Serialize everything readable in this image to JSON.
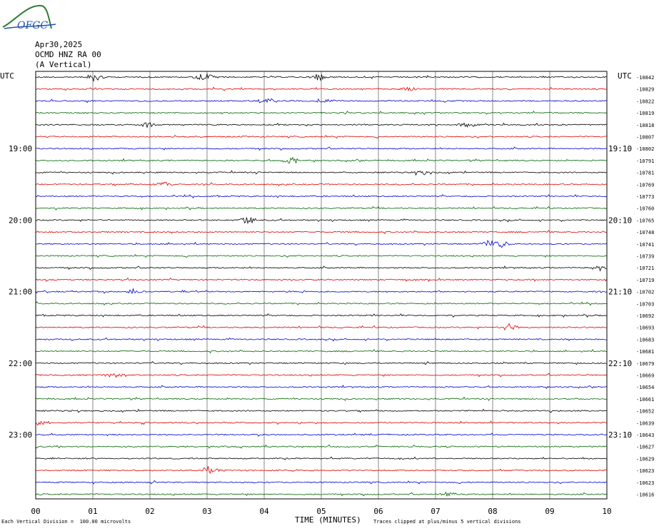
{
  "logo": {
    "text": "OFGC",
    "colors": {
      "text": "#2255aa",
      "swoosh": "#2e7d32"
    }
  },
  "header": {
    "date": "Apr30,2025",
    "station": "OCMD HNZ RA 00",
    "component": "(A Vertical)"
  },
  "chart_data": {
    "type": "line",
    "title": "",
    "xlabel": "TIME (MINUTES)",
    "xlim": [
      0,
      10
    ],
    "x_ticks": [
      "00",
      "01",
      "02",
      "03",
      "04",
      "05",
      "06",
      "07",
      "08",
      "09",
      "10"
    ],
    "left_axis_label": "UTC",
    "right_axis_label": "UTC",
    "left_time_labels": [
      {
        "row": 6,
        "label": "19:00"
      },
      {
        "row": 12,
        "label": "20:00"
      },
      {
        "row": 18,
        "label": "21:00"
      },
      {
        "row": 24,
        "label": "22:00"
      },
      {
        "row": 30,
        "label": "23:00"
      }
    ],
    "right_time_labels": [
      {
        "row": 6,
        "label": "19:10"
      },
      {
        "row": 12,
        "label": "20:10"
      },
      {
        "row": 18,
        "label": "21:10"
      },
      {
        "row": 24,
        "label": "22:10"
      },
      {
        "row": 30,
        "label": "23:10"
      }
    ],
    "trace_colors": [
      "#000000",
      "#dd0000",
      "#0000cc",
      "#006600"
    ],
    "trace_offsets": [
      "-10842",
      "-10829",
      "-10822",
      "-10819",
      "-10818",
      "-10807",
      "-10802",
      "-10791",
      "-10781",
      "-10769",
      "-10773",
      "-10760",
      "-10765",
      "-10748",
      "-10741",
      "-10739",
      "-10721",
      "-10719",
      "-10702",
      "-10703",
      "-10692",
      "-10693",
      "-10683",
      "-10681",
      "-10679",
      "-10669",
      "-10654",
      "-10661",
      "-10652",
      "-10639",
      "-10643",
      "-10627",
      "-10629",
      "-10623",
      "-10623",
      "-10616"
    ],
    "events": [
      {
        "row": 0,
        "minute": 1.05,
        "amp": 6
      },
      {
        "row": 0,
        "minute": 2.95,
        "amp": 6
      },
      {
        "row": 0,
        "minute": 4.95,
        "amp": 5
      },
      {
        "row": 1,
        "minute": 6.5,
        "amp": 4
      },
      {
        "row": 2,
        "minute": 4.05,
        "amp": 5
      },
      {
        "row": 2,
        "minute": 5.05,
        "amp": 5
      },
      {
        "row": 4,
        "minute": 1.95,
        "amp": 4
      },
      {
        "row": 4,
        "minute": 7.55,
        "amp": 4
      },
      {
        "row": 7,
        "minute": 4.45,
        "amp": 6
      },
      {
        "row": 8,
        "minute": 6.8,
        "amp": 4
      },
      {
        "row": 9,
        "minute": 2.25,
        "amp": 4
      },
      {
        "row": 12,
        "minute": 3.7,
        "amp": 6
      },
      {
        "row": 14,
        "minute": 7.95,
        "amp": 6
      },
      {
        "row": 14,
        "minute": 8.15,
        "amp": 5
      },
      {
        "row": 16,
        "minute": 9.9,
        "amp": 4
      },
      {
        "row": 18,
        "minute": 1.7,
        "amp": 4
      },
      {
        "row": 21,
        "minute": 8.3,
        "amp": 5
      },
      {
        "row": 25,
        "minute": 1.35,
        "amp": 4
      },
      {
        "row": 29,
        "minute": 0.1,
        "amp": 4
      },
      {
        "row": 33,
        "minute": 3.05,
        "amp": 6
      },
      {
        "row": 35,
        "minute": 7.25,
        "amp": 3
      }
    ]
  },
  "footer": {
    "scale_note": "Each Vertical Division =  100.00 microvolts",
    "clip_note": "Traces clipped at plus/minus 5 vertical divisions"
  }
}
